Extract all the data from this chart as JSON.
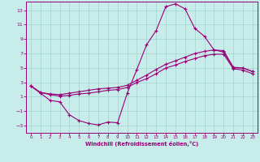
{
  "xlabel": "Windchill (Refroidissement éolien,°C)",
  "bg_color": "#c8ecea",
  "grid_color": "#a0d4d0",
  "line_color": "#990077",
  "xlim_min": -0.5,
  "xlim_max": 23.5,
  "ylim_min": -4.0,
  "ylim_max": 14.2,
  "yticks": [
    -3,
    -1,
    1,
    3,
    5,
    7,
    9,
    11,
    13
  ],
  "xticks": [
    0,
    1,
    2,
    3,
    4,
    5,
    6,
    7,
    8,
    9,
    10,
    11,
    12,
    13,
    14,
    15,
    16,
    17,
    18,
    19,
    20,
    21,
    22,
    23
  ],
  "line1_x": [
    0,
    1,
    2,
    3,
    4,
    5,
    6,
    7,
    8,
    9,
    10,
    11,
    12,
    13,
    14,
    15,
    16,
    17,
    18,
    19,
    20,
    21,
    22,
    23
  ],
  "line1_y": [
    2.5,
    1.5,
    0.5,
    0.3,
    -1.5,
    -2.3,
    -2.7,
    -2.9,
    -2.5,
    -2.6,
    1.5,
    4.8,
    8.2,
    10.2,
    13.5,
    13.9,
    13.2,
    10.5,
    9.4,
    7.5,
    7.2,
    5.0,
    5.0,
    4.5
  ],
  "line2_x": [
    0,
    1,
    2,
    3,
    4,
    5,
    6,
    7,
    8,
    9,
    10,
    11,
    12,
    13,
    14,
    15,
    16,
    17,
    18,
    19,
    20,
    21,
    22,
    23
  ],
  "line2_y": [
    2.5,
    1.6,
    1.4,
    1.3,
    1.5,
    1.7,
    1.9,
    2.1,
    2.2,
    2.3,
    2.6,
    3.3,
    4.0,
    4.8,
    5.5,
    6.0,
    6.5,
    7.0,
    7.3,
    7.5,
    7.4,
    5.1,
    5.0,
    4.5
  ],
  "line3_x": [
    0,
    1,
    2,
    3,
    4,
    5,
    6,
    7,
    8,
    9,
    10,
    11,
    12,
    13,
    14,
    15,
    16,
    17,
    18,
    19,
    20,
    21,
    22,
    23
  ],
  "line3_y": [
    2.5,
    1.6,
    1.3,
    1.1,
    1.2,
    1.4,
    1.5,
    1.7,
    1.9,
    2.0,
    2.3,
    3.0,
    3.5,
    4.2,
    5.0,
    5.4,
    5.9,
    6.3,
    6.7,
    6.9,
    6.9,
    4.9,
    4.7,
    4.2
  ]
}
